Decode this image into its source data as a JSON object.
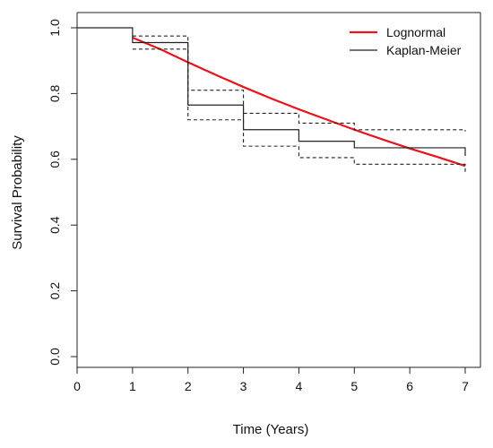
{
  "chart_data": {
    "type": "line",
    "title": "",
    "xlabel": "Time (Years)",
    "ylabel": "Survival Probability",
    "xlim": [
      0,
      7
    ],
    "ylim": [
      0,
      1
    ],
    "x_ticks": [
      "0",
      "1",
      "2",
      "3",
      "4",
      "5",
      "6",
      "7"
    ],
    "y_ticks": [
      "0.0",
      "0.2",
      "0.4",
      "0.6",
      "0.8",
      "1.0"
    ],
    "grid": false,
    "legend_position": "top-right",
    "series": [
      {
        "name": "Lognormal",
        "kind": "smooth-line",
        "color": "#e8141c",
        "x": [
          1.0,
          1.5,
          2.0,
          2.5,
          3.0,
          3.5,
          4.0,
          4.5,
          5.0,
          5.5,
          6.0,
          6.5,
          7.0
        ],
        "y": [
          0.97,
          0.935,
          0.895,
          0.857,
          0.82,
          0.785,
          0.752,
          0.721,
          0.69,
          0.661,
          0.633,
          0.607,
          0.58
        ]
      },
      {
        "name": "Kaplan-Meier",
        "kind": "step",
        "color": "#222222",
        "x": [
          0,
          1,
          2,
          3,
          4,
          5,
          7
        ],
        "y": [
          1.0,
          0.955,
          0.765,
          0.69,
          0.655,
          0.635,
          0.61
        ]
      },
      {
        "name": "",
        "kind": "step-dashed",
        "color": "#222222",
        "x": [
          1,
          2,
          3,
          4,
          5,
          7
        ],
        "y": [
          0.975,
          0.81,
          0.74,
          0.71,
          0.69,
          0.685
        ]
      },
      {
        "name": "",
        "kind": "step-dashed",
        "color": "#222222",
        "x": [
          1,
          2,
          3,
          4,
          5,
          7
        ],
        "y": [
          0.935,
          0.72,
          0.64,
          0.605,
          0.585,
          0.56
        ]
      }
    ]
  }
}
